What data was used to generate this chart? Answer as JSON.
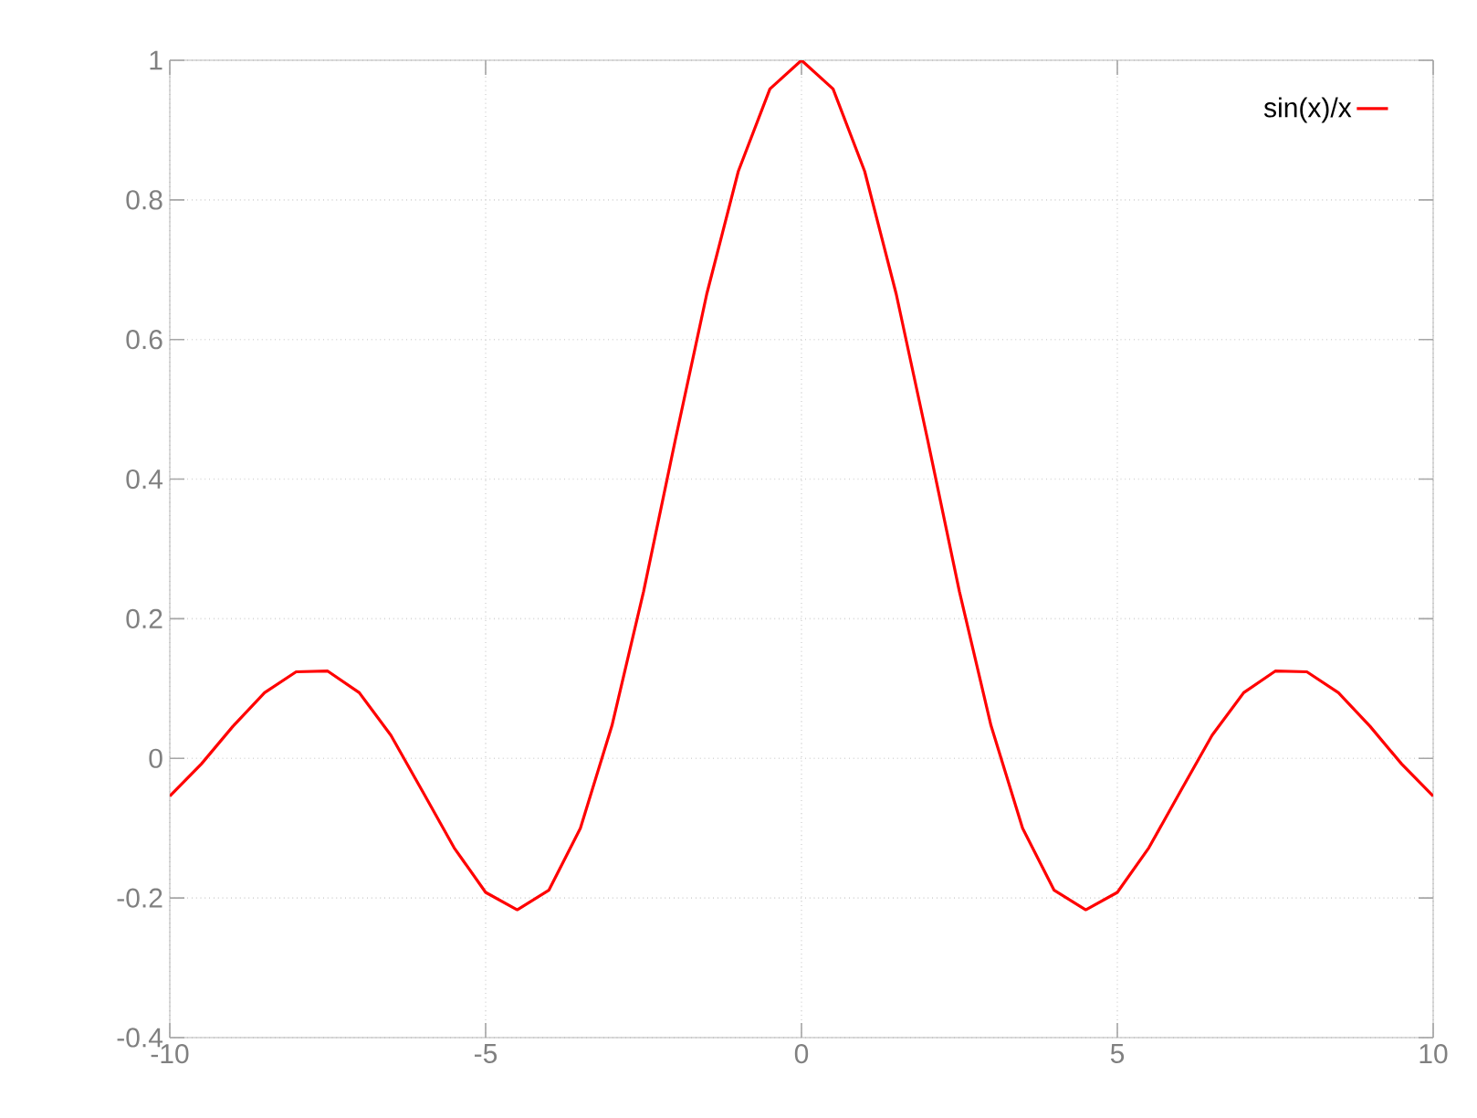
{
  "chart_data": {
    "type": "line",
    "x": [
      -10,
      -9.5,
      -9,
      -8.5,
      -8,
      -7.5,
      -7,
      -6.5,
      -6,
      -5.5,
      -5,
      -4.5,
      -4,
      -3.5,
      -3,
      -2.5,
      -2,
      -1.5,
      -1,
      -0.5,
      0,
      0.5,
      1,
      1.5,
      2,
      2.5,
      3,
      3.5,
      4,
      4.5,
      5,
      5.5,
      6,
      6.5,
      7,
      7.5,
      8,
      8.5,
      9,
      9.5,
      10
    ],
    "series": [
      {
        "name": "sin(x)/x",
        "color": "#ff0000",
        "values": [
          -0.054,
          -0.008,
          0.046,
          0.094,
          0.124,
          0.125,
          0.094,
          0.033,
          -0.047,
          -0.128,
          -0.192,
          -0.217,
          -0.189,
          -0.1,
          0.047,
          0.239,
          0.455,
          0.665,
          0.841,
          0.959,
          1.0,
          0.959,
          0.841,
          0.665,
          0.455,
          0.239,
          0.047,
          -0.1,
          -0.189,
          -0.217,
          -0.192,
          -0.128,
          -0.047,
          0.033,
          0.094,
          0.125,
          0.124,
          0.094,
          0.046,
          -0.008,
          -0.054
        ]
      }
    ],
    "xlim": [
      -10,
      10
    ],
    "ylim": [
      -0.4,
      1
    ],
    "xticks": [
      -10,
      -5,
      0,
      5,
      10
    ],
    "yticks": [
      -0.4,
      -0.2,
      0,
      0.2,
      0.4,
      0.6,
      0.8,
      1
    ],
    "grid": true,
    "legend": "top right",
    "line_style": "solid"
  }
}
